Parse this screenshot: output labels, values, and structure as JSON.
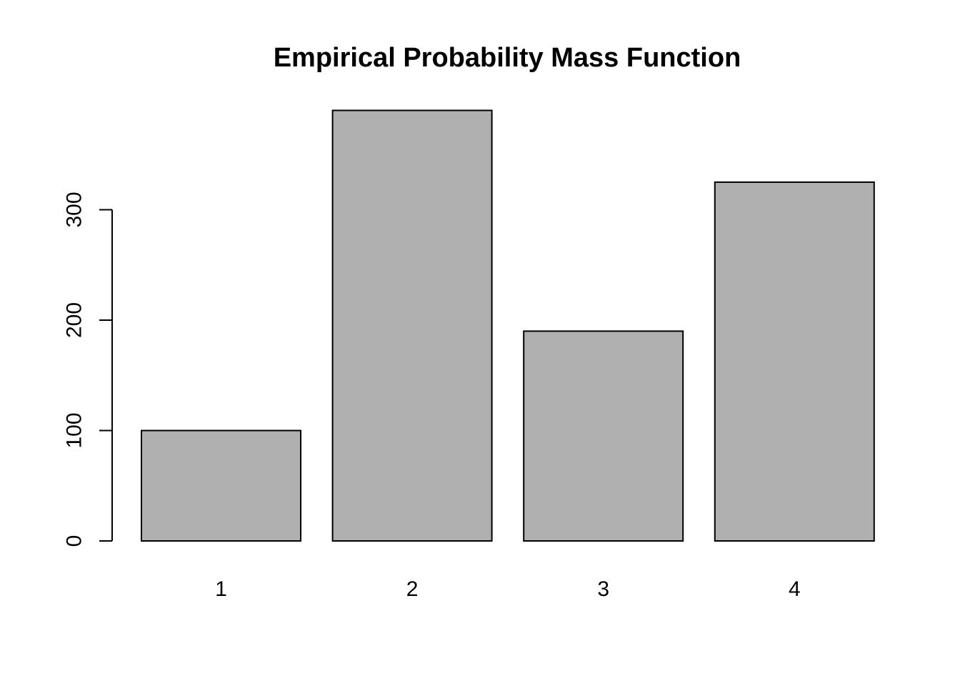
{
  "page": {
    "background_color": "#ffffff"
  },
  "chart_data": {
    "type": "bar",
    "title": "Empirical Probability Mass Function",
    "categories": [
      "1",
      "2",
      "3",
      "4"
    ],
    "values": [
      100,
      390,
      190,
      325
    ],
    "xlabel": "",
    "ylabel": "",
    "ylim": [
      0,
      390
    ],
    "yticks": [
      0,
      100,
      200,
      300
    ],
    "bar_fill_color": "#b0b0b0",
    "bar_border_color": "#000000",
    "axis_color": "#000000",
    "text_color": "#000000",
    "grid": false,
    "legend": "none"
  }
}
